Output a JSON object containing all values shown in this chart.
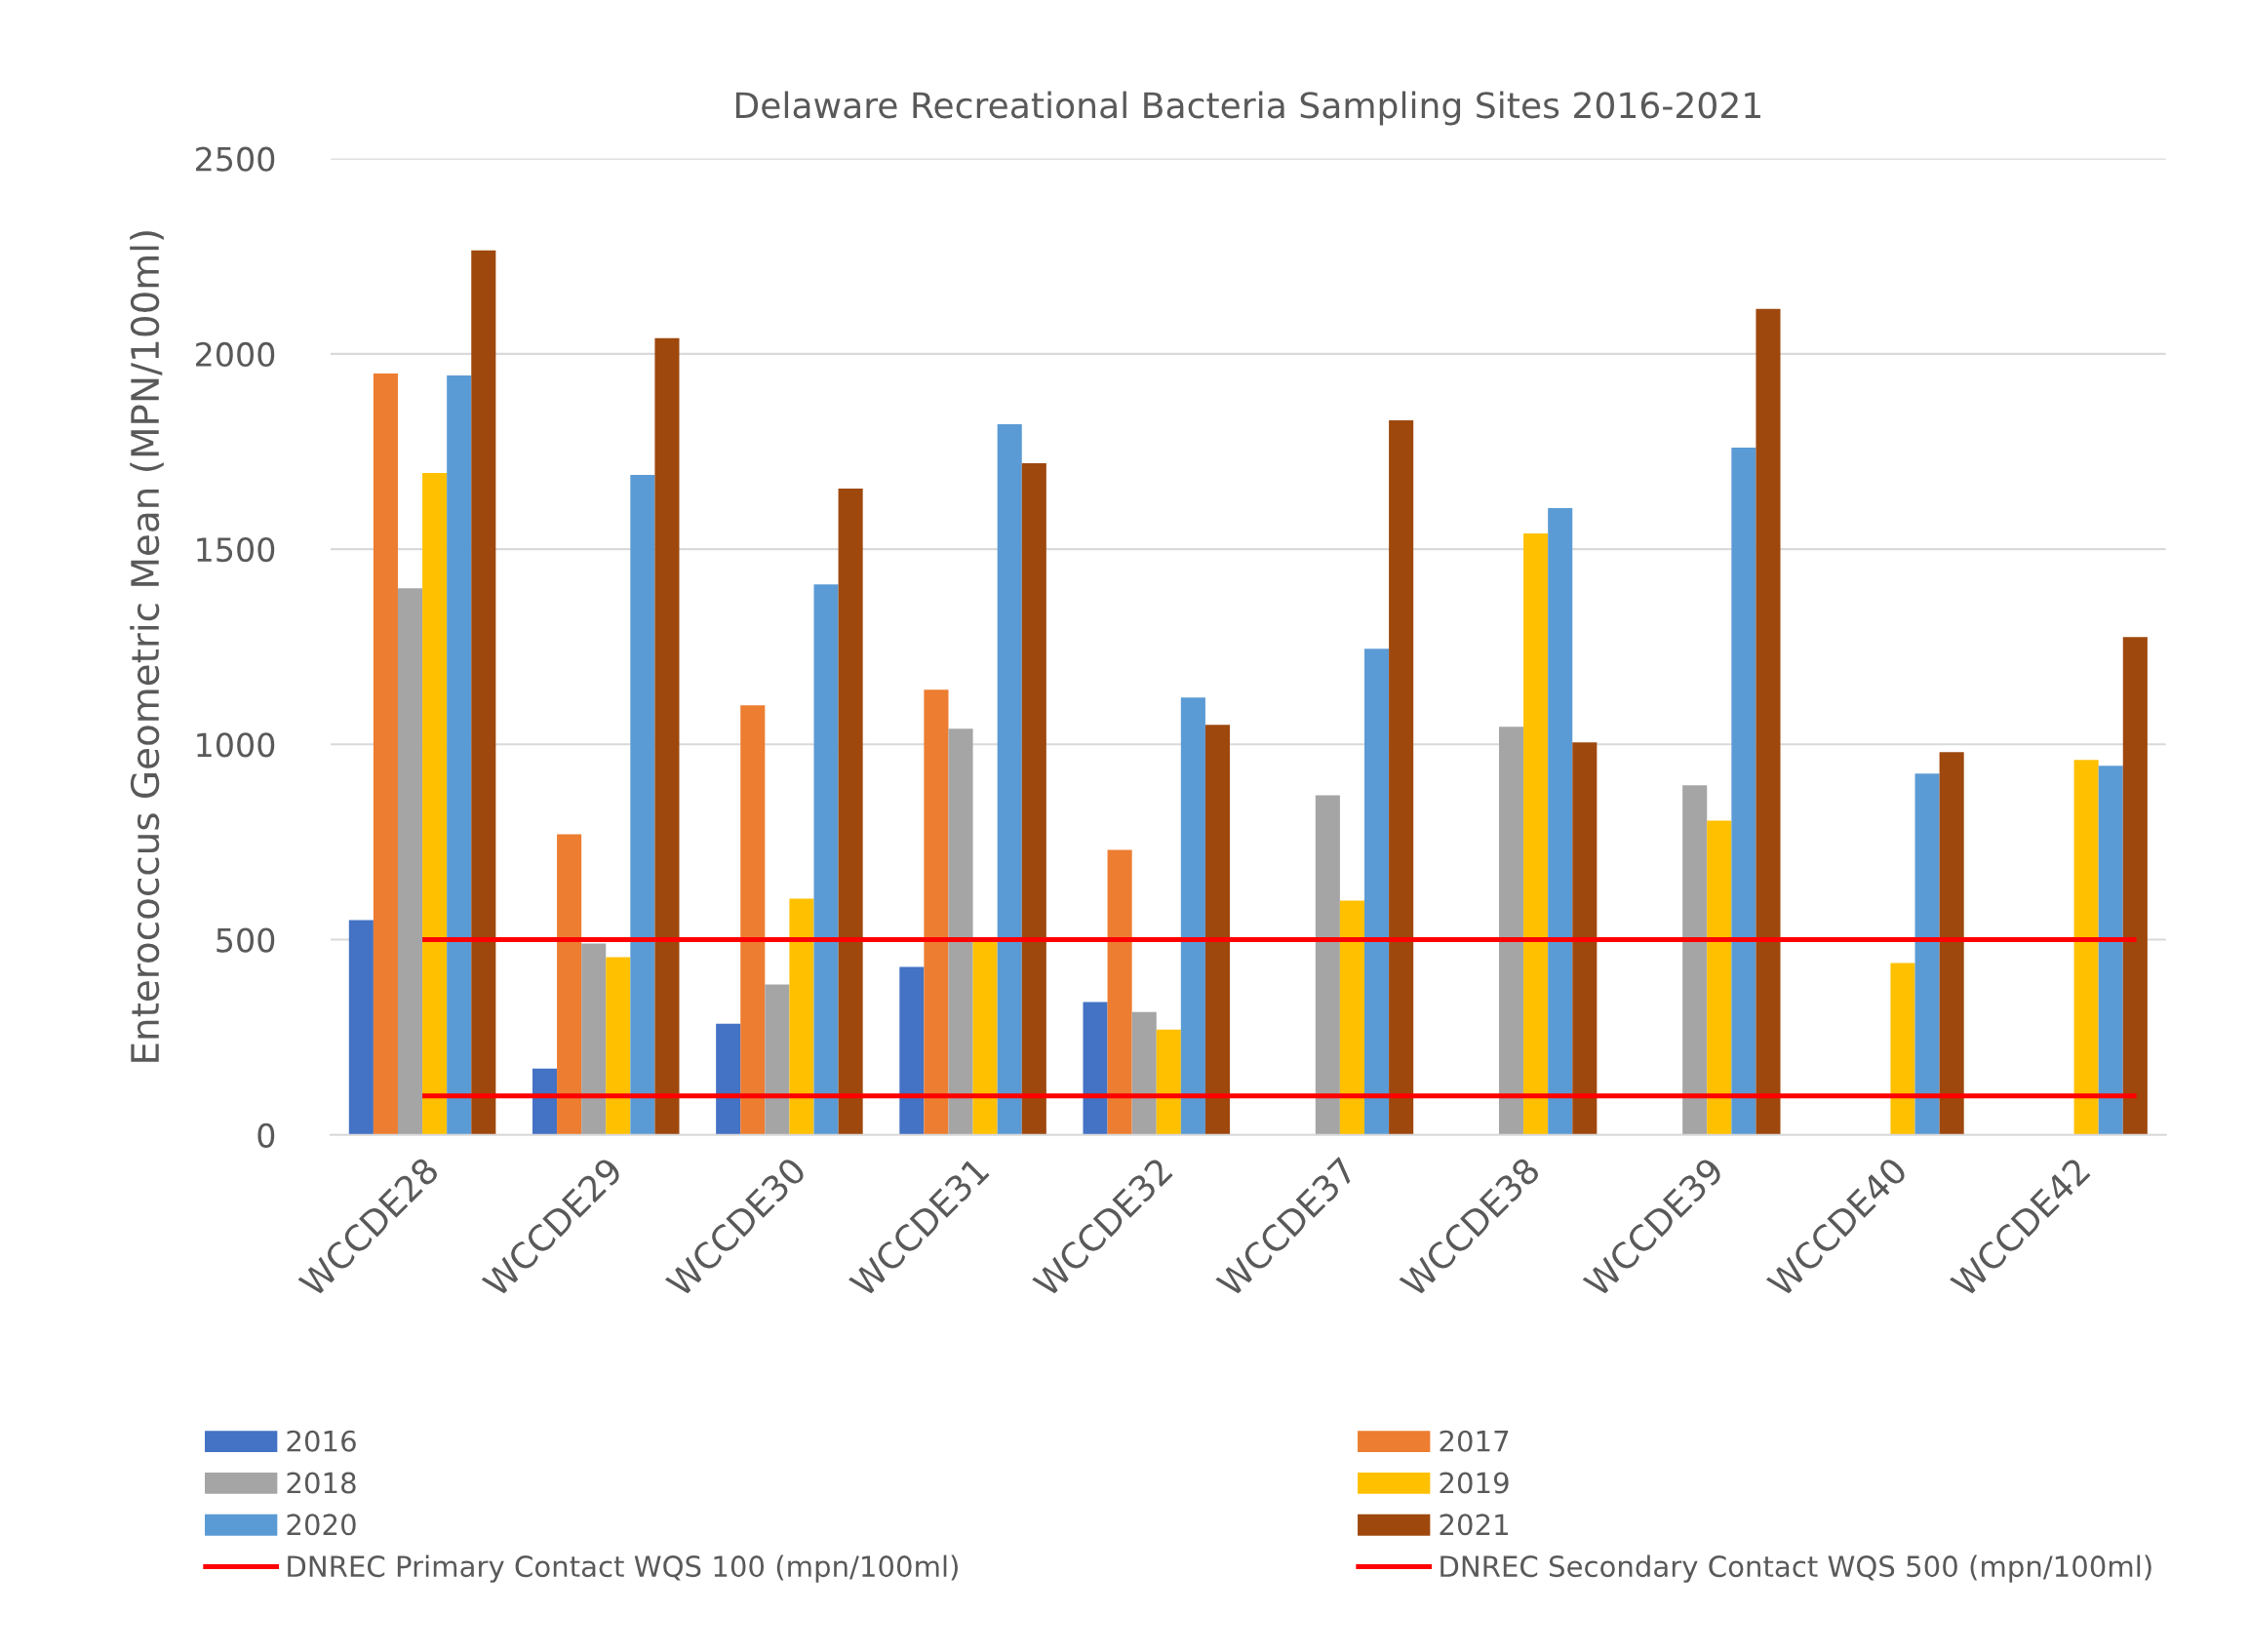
{
  "chart_data": {
    "type": "bar",
    "title": "Delaware Recreational Bacteria Sampling Sites 2016-2021",
    "ylabel": "Enterococcus Geometric Mean (MPN/100ml)",
    "categories": [
      "WCCDE28",
      "WCCDE29",
      "WCCDE30",
      "WCCDE31",
      "WCCDE32",
      "WCCDE37",
      "WCCDE38",
      "WCCDE39",
      "WCCDE40",
      "WCCDE42"
    ],
    "series": [
      {
        "name": "2016",
        "color": "#4472c4",
        "values": [
          550,
          170,
          285,
          430,
          340,
          null,
          null,
          null,
          null,
          null
        ]
      },
      {
        "name": "2017",
        "color": "#ed7d31",
        "values": [
          1950,
          770,
          1100,
          1140,
          730,
          null,
          null,
          null,
          null,
          null
        ]
      },
      {
        "name": "2018",
        "color": "#a5a5a5",
        "values": [
          1400,
          490,
          385,
          1040,
          315,
          870,
          1045,
          895,
          null,
          null
        ]
      },
      {
        "name": "2019",
        "color": "#ffc000",
        "values": [
          1695,
          455,
          605,
          500,
          270,
          600,
          1540,
          805,
          440,
          960
        ]
      },
      {
        "name": "2020",
        "color": "#5b9bd5",
        "values": [
          1945,
          1690,
          1410,
          1820,
          1120,
          1245,
          1605,
          1760,
          925,
          945
        ]
      },
      {
        "name": "2021",
        "color": "#9e480e",
        "values": [
          2265,
          2040,
          1655,
          1720,
          1050,
          1830,
          1005,
          2115,
          980,
          1275
        ]
      }
    ],
    "ref_lines": [
      {
        "axis": "y",
        "value": 100,
        "label": "DNREC Primary Contact WQS 100 (mpn/100ml)",
        "color": "#ff0000"
      },
      {
        "axis": "y",
        "value": 500,
        "label": "DNREC Secondary Contact WQS 500 (mpn/100ml)",
        "color": "#ff0000"
      }
    ],
    "ylim": [
      0,
      2500
    ],
    "yticks": [
      0,
      500,
      1000,
      1500,
      2000,
      2500
    ],
    "grid": "y",
    "legend": "bottom"
  }
}
